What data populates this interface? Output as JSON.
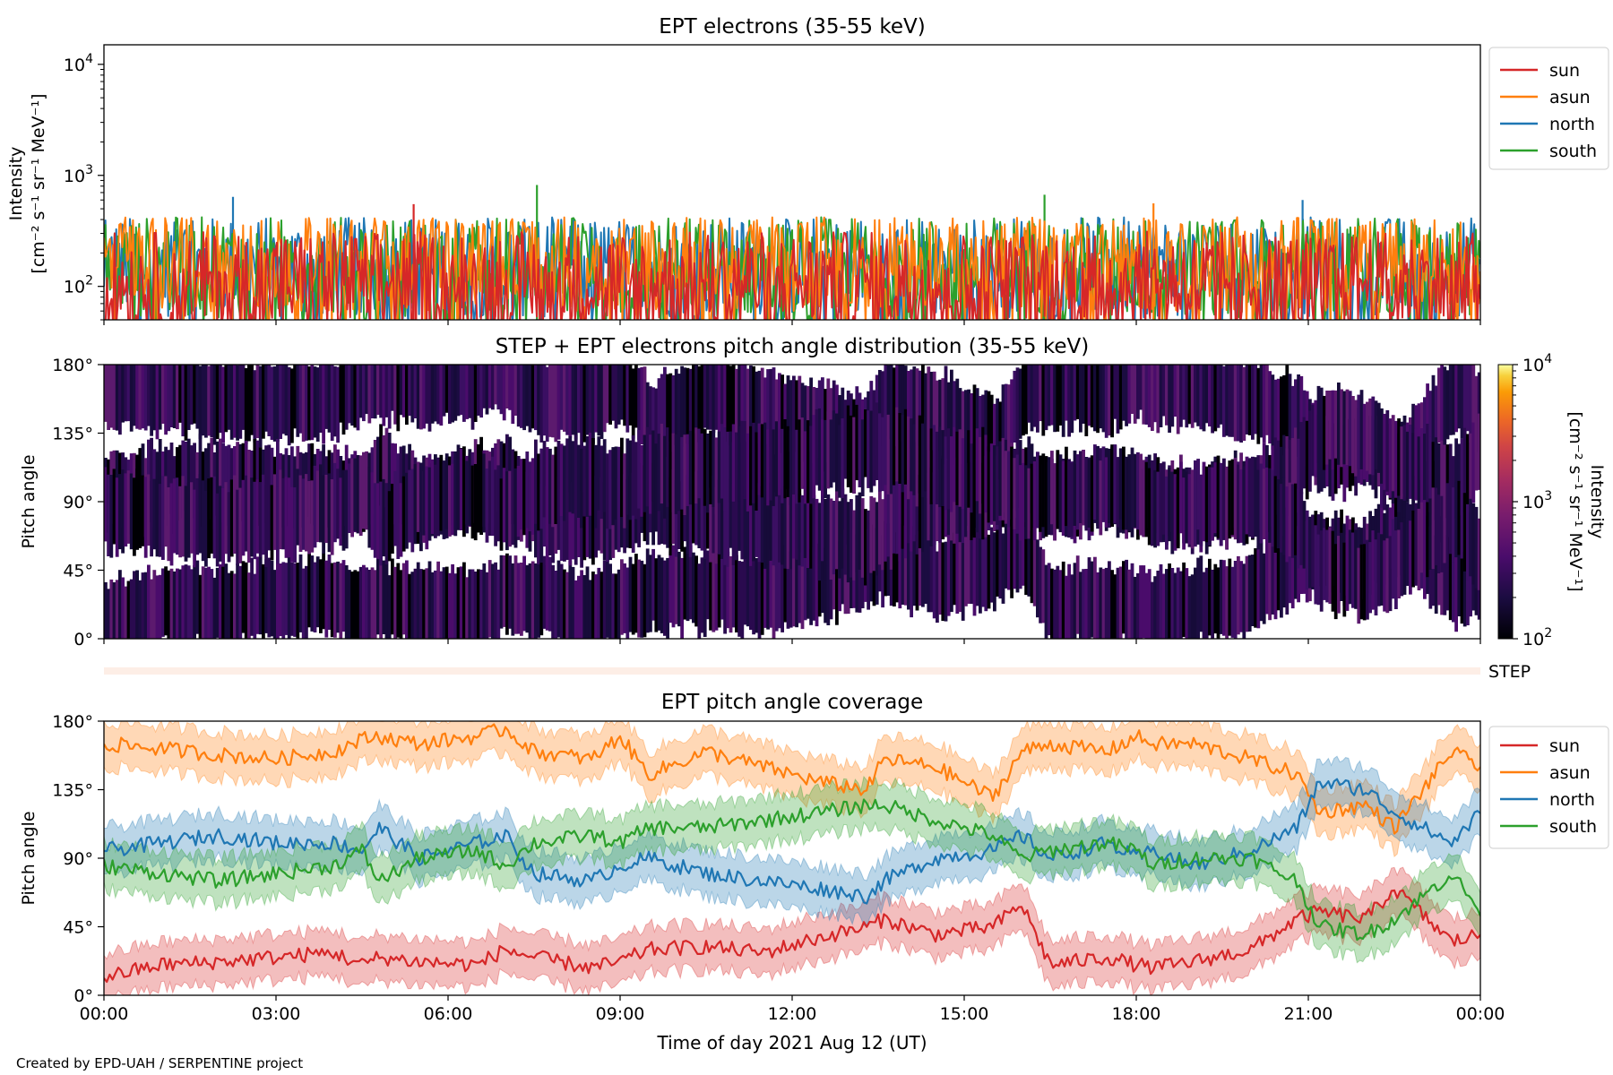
{
  "figure": {
    "xlabel": "Time of day 2021 Aug 12 (UT)",
    "footer": "Created by EPD-UAH / SERPENTINE project",
    "x_tick_labels": [
      "00:00",
      "03:00",
      "06:00",
      "09:00",
      "12:00",
      "15:00",
      "18:00",
      "21:00",
      "00:00"
    ]
  },
  "chart_data": [
    {
      "type": "line",
      "title": "EPT electrons (35-55 keV)",
      "ylabel_line1": "Intensity",
      "ylabel_line2": "[cm⁻² s⁻¹ sr⁻¹ MeV⁻¹]",
      "yscale": "log",
      "ylim": [
        50,
        15000
      ],
      "y_tick_labels": [
        {
          "value": 100,
          "base": "10",
          "exp": "2"
        },
        {
          "value": 1000,
          "base": "10",
          "exp": "3"
        },
        {
          "value": 10000,
          "base": "10",
          "exp": "4"
        }
      ],
      "x_hours": [
        0,
        24
      ],
      "legend_loc": "outside-upper-right",
      "legend": [
        "sun",
        "asun",
        "north",
        "south"
      ],
      "colors": {
        "sun": "#d62728",
        "asun": "#ff7f0e",
        "north": "#1f77b4",
        "south": "#2ca02c"
      },
      "typical_range": [
        60,
        400
      ],
      "peaks": [
        {
          "series": "south",
          "hour": 7.55,
          "value": 820
        },
        {
          "series": "south",
          "hour": 16.4,
          "value": 670
        },
        {
          "series": "north",
          "hour": 2.25,
          "value": 640
        },
        {
          "series": "sun",
          "hour": 5.4,
          "value": 550
        },
        {
          "series": "north",
          "hour": 20.9,
          "value": 600
        },
        {
          "series": "asun",
          "hour": 18.3,
          "value": 560
        }
      ]
    },
    {
      "type": "heatmap",
      "title": "STEP + EPT electrons pitch angle distribution (35-55 keV)",
      "ylabel": "Pitch angle",
      "ylim": [
        0,
        180
      ],
      "y_tick_labels": [
        "0°",
        "45°",
        "90°",
        "135°",
        "180°"
      ],
      "colorbar_label_line1": "Intensity",
      "colorbar_label_line2": "[cm⁻² s⁻¹ sr⁻¹ MeV⁻¹]",
      "colorbar_range": [
        100,
        10000
      ],
      "colorbar_tick_labels": [
        {
          "value": 100,
          "base": "10",
          "exp": "2"
        },
        {
          "value": 1000,
          "base": "10",
          "exp": "3"
        },
        {
          "value": 10000,
          "base": "10",
          "exp": "4"
        }
      ],
      "colormap": "inferno",
      "step_label": "STEP"
    },
    {
      "type": "line",
      "title": "EPT pitch angle coverage",
      "ylabel": "Pitch angle",
      "ylim": [
        0,
        180
      ],
      "y_tick_labels": [
        "0°",
        "45°",
        "90°",
        "135°",
        "180°"
      ],
      "legend_loc": "outside-upper-right",
      "legend": [
        "sun",
        "asun",
        "north",
        "south"
      ],
      "colors": {
        "sun": "#d62728",
        "asun": "#ff7f0e",
        "north": "#1f77b4",
        "south": "#2ca02c"
      },
      "x": [
        0,
        1,
        2,
        3,
        4,
        4.5,
        4.8,
        5.5,
        6.5,
        7,
        7.5,
        8.5,
        9,
        9.5,
        10.5,
        11.5,
        12.5,
        13.3,
        13.6,
        14.5,
        15.5,
        16,
        16.5,
        17.5,
        18,
        18.3,
        19,
        20,
        20.8,
        21.2,
        22,
        22.5,
        23.5,
        24
      ],
      "series": [
        {
          "name": "sun",
          "values": [
            12,
            20,
            22,
            25,
            28,
            20,
            25,
            22,
            20,
            30,
            25,
            18,
            22,
            30,
            32,
            28,
            38,
            45,
            50,
            40,
            45,
            60,
            20,
            25,
            20,
            18,
            22,
            30,
            50,
            55,
            50,
            70,
            35,
            40
          ]
        },
        {
          "name": "asun",
          "values": [
            165,
            162,
            158,
            155,
            160,
            168,
            170,
            165,
            170,
            175,
            160,
            155,
            170,
            145,
            160,
            150,
            140,
            135,
            155,
            150,
            130,
            160,
            165,
            160,
            170,
            165,
            165,
            155,
            145,
            120,
            125,
            110,
            160,
            150
          ]
        },
        {
          "name": "north",
          "values": [
            95,
            100,
            105,
            100,
            100,
            95,
            110,
            90,
            100,
            105,
            80,
            75,
            85,
            90,
            80,
            75,
            70,
            65,
            75,
            90,
            95,
            105,
            90,
            100,
            90,
            95,
            85,
            95,
            110,
            140,
            135,
            120,
            100,
            120
          ]
        },
        {
          "name": "south",
          "values": [
            85,
            80,
            75,
            80,
            85,
            95,
            75,
            90,
            95,
            85,
            100,
            105,
            100,
            110,
            110,
            115,
            120,
            125,
            125,
            115,
            105,
            90,
            95,
            100,
            95,
            85,
            90,
            90,
            75,
            45,
            40,
            50,
            80,
            55
          ]
        }
      ],
      "band_halfwidth": 15
    }
  ]
}
